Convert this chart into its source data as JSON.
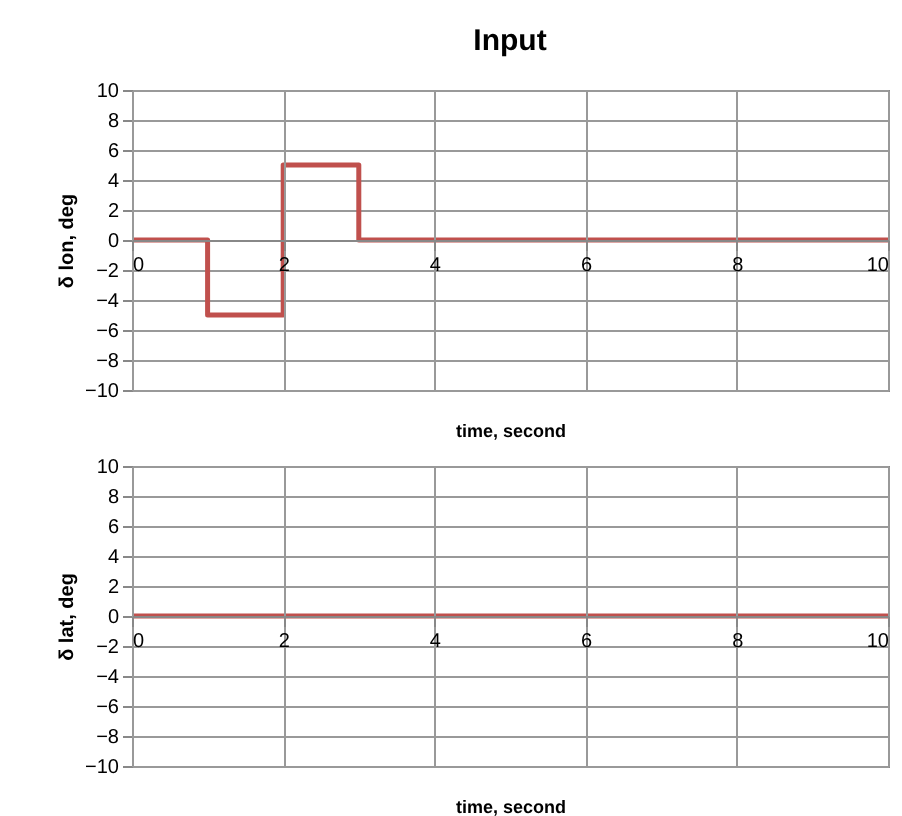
{
  "chart_data": [
    {
      "type": "line",
      "title": "Input",
      "xlabel": "time, second",
      "ylabel": "δ lon, deg",
      "xlim": [
        0,
        10
      ],
      "xticks": [
        0,
        2,
        4,
        6,
        8,
        10
      ],
      "ylim": [
        -10,
        10
      ],
      "yticks": [
        -10,
        -8,
        -6,
        -4,
        -2,
        0,
        2,
        4,
        6,
        8,
        10
      ],
      "grid": true,
      "legend": false,
      "marker": "none",
      "line_style": "solid",
      "series": [
        {
          "color": "#c0504d",
          "x": [
            0,
            1,
            1,
            2,
            2,
            3,
            3,
            10
          ],
          "values": [
            0,
            0,
            -5,
            -5,
            5,
            5,
            0,
            0
          ]
        }
      ]
    },
    {
      "type": "line",
      "xlabel": "time, second",
      "ylabel": "δ lat, deg",
      "xlim": [
        0,
        10
      ],
      "xticks": [
        0,
        2,
        4,
        6,
        8,
        10
      ],
      "ylim": [
        -10,
        10
      ],
      "yticks": [
        -10,
        -8,
        -6,
        -4,
        -2,
        0,
        2,
        4,
        6,
        8,
        10
      ],
      "grid": true,
      "legend": false,
      "marker": "none",
      "line_style": "solid",
      "series": [
        {
          "color": "#c0504d",
          "x": [
            0,
            10
          ],
          "values": [
            0,
            0
          ]
        }
      ]
    }
  ]
}
